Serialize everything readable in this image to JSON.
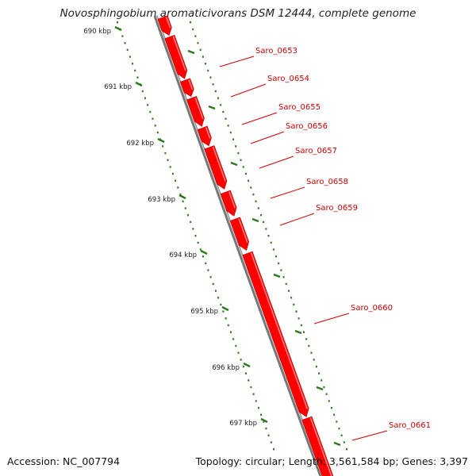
{
  "title": "Novosphingobium aromaticivorans DSM 12444, complete genome",
  "footer": {
    "accession": "Accession: NC_007794",
    "stats": "Topology: circular; Length: 3,561,584 bp; Genes: 3,397"
  },
  "colors": {
    "gene": "#ff0000",
    "backbone": "#888888",
    "ruler": "#2a7a1a",
    "gene_label": "#cc0000"
  },
  "ruler_ticks": [
    "690 kbp",
    "691 kbp",
    "692 kbp",
    "693 kbp",
    "694 kbp",
    "695 kbp",
    "696 kbp",
    "697 kbp"
  ],
  "genes": [
    "Saro_0653",
    "Saro_0654",
    "Saro_0655",
    "Saro_0656",
    "Saro_0657",
    "Saro_0658",
    "Saro_0659",
    "Saro_0660",
    "Saro_0661"
  ]
}
